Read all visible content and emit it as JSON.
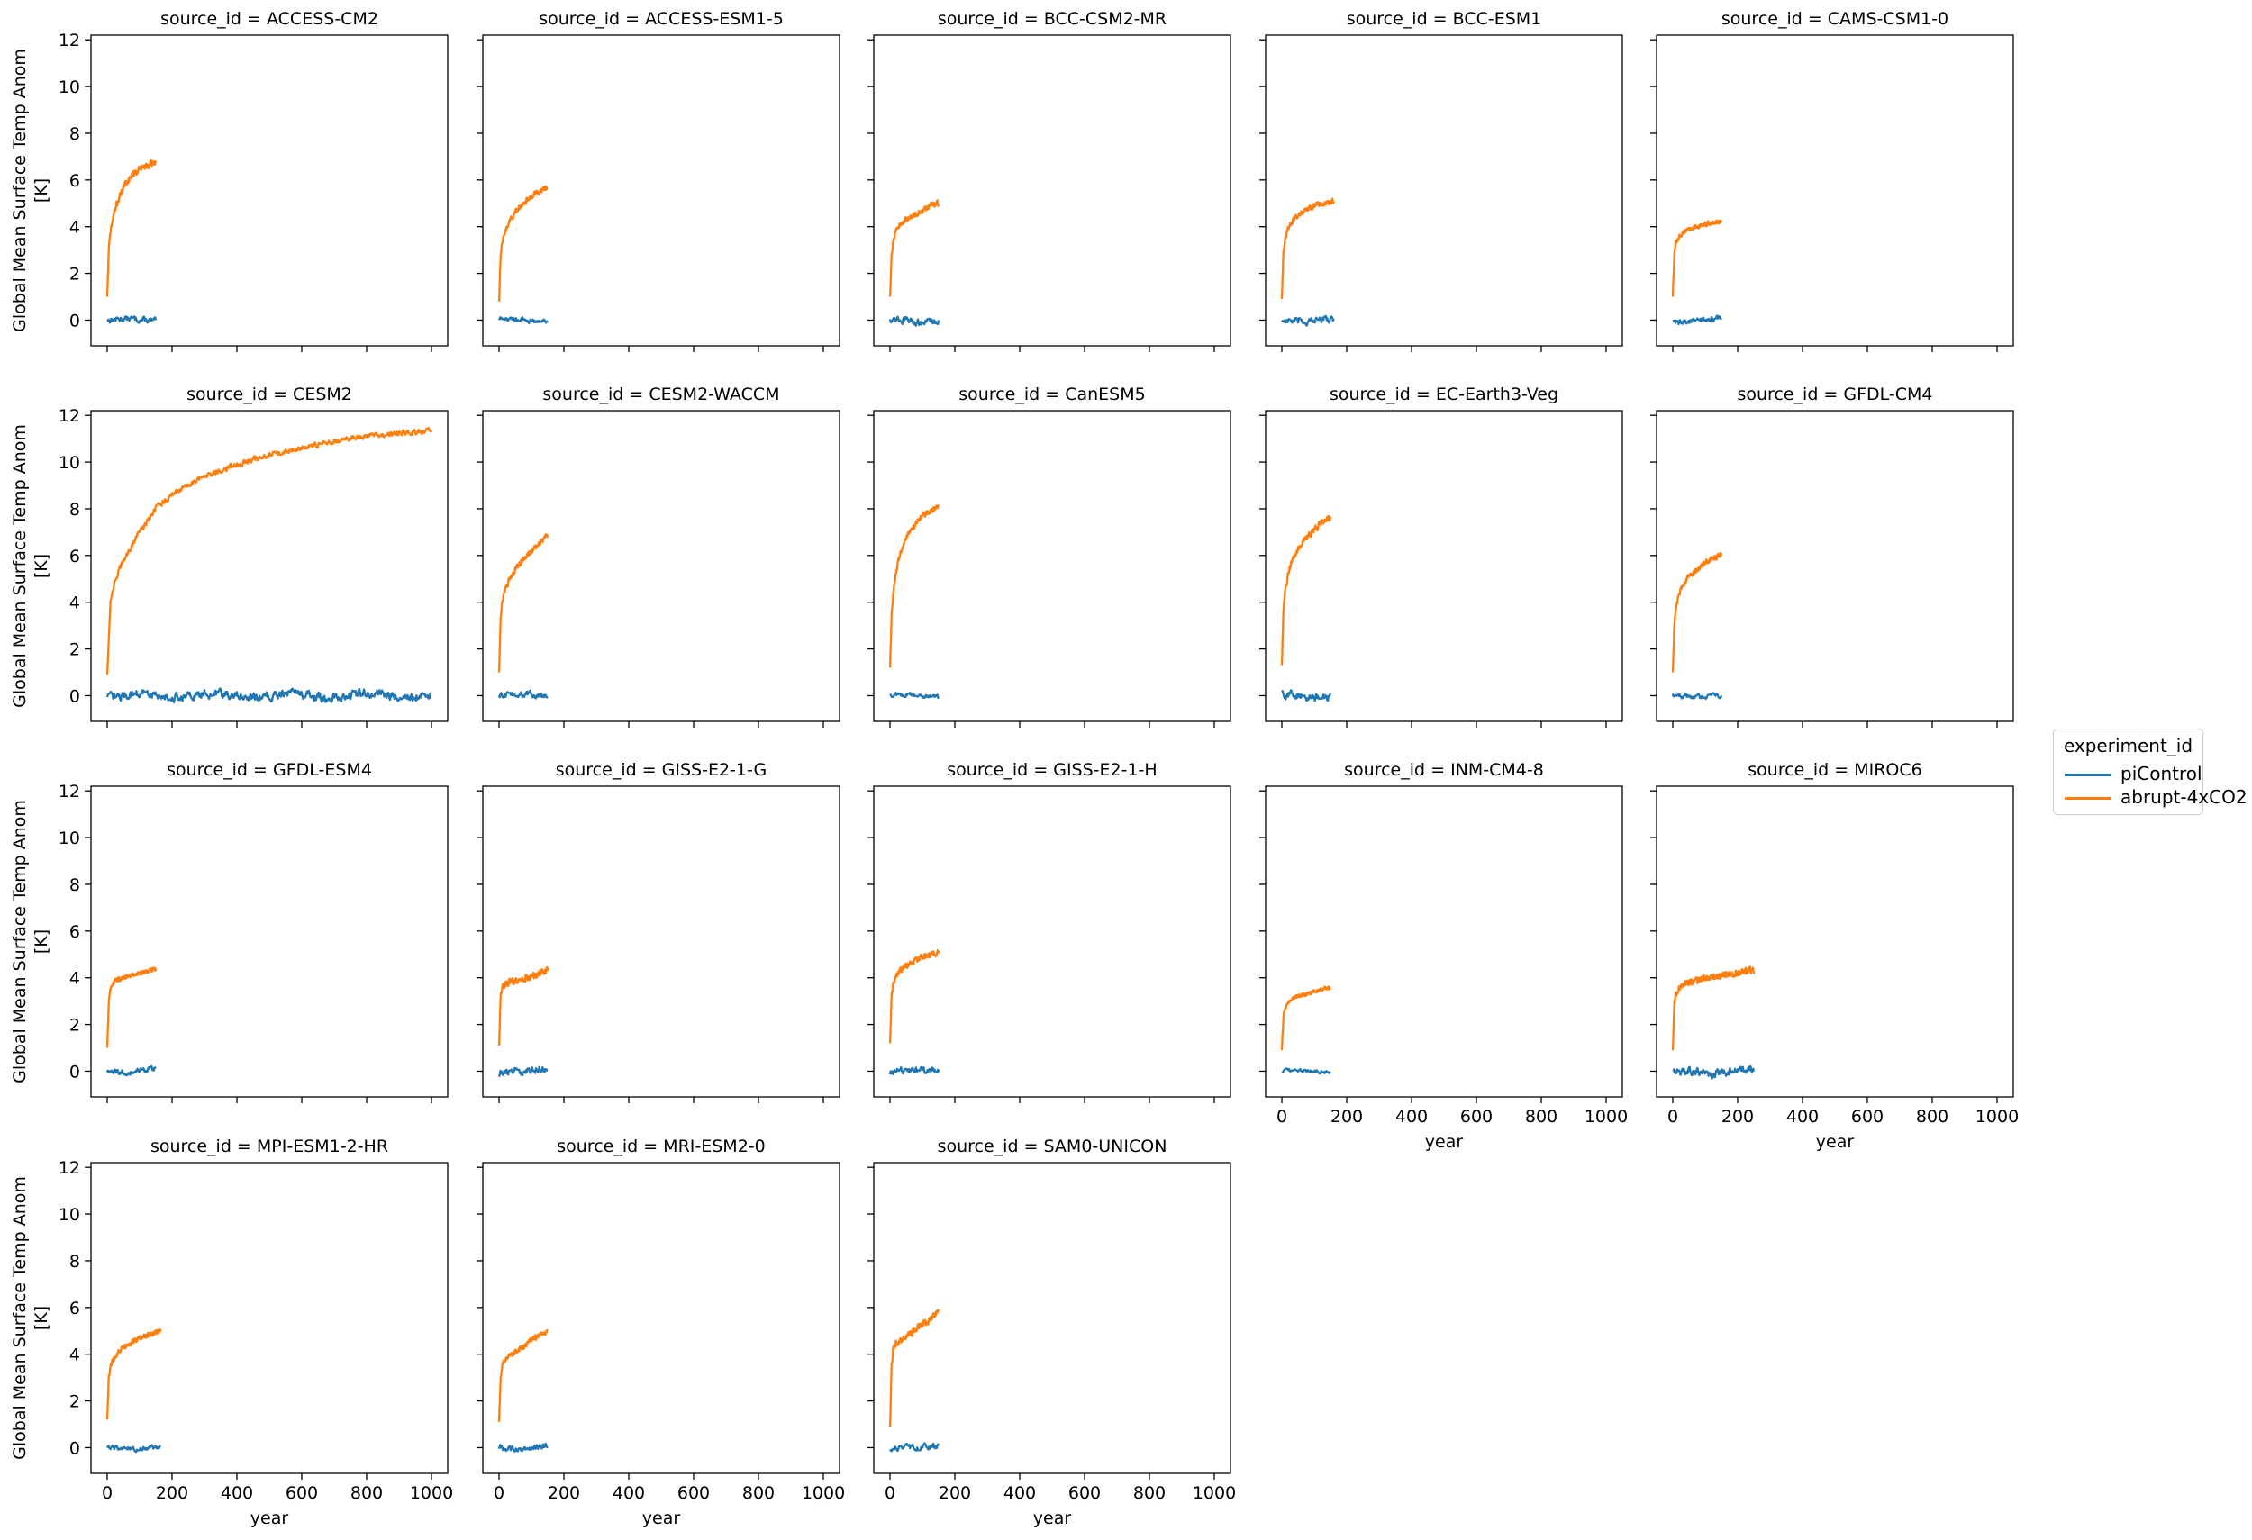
{
  "chart_data": {
    "type": "line",
    "xlabel": "year",
    "ylabel": "Global Mean Surface Temp Anom\n[K]",
    "xlim": [
      -50,
      1050
    ],
    "ylim": [
      -1.1,
      12.2
    ],
    "x_ticks": [
      0,
      200,
      400,
      600,
      800,
      1000
    ],
    "y_ticks": [
      0,
      2,
      4,
      6,
      8,
      10,
      12
    ],
    "grid": false,
    "legend": {
      "title": "experiment_id",
      "placement": "right",
      "entries": [
        {
          "name": "piControl",
          "color": "#1f77b4"
        },
        {
          "name": "abrupt-4xCO2",
          "color": "#ff7f0e"
        }
      ]
    },
    "colors": {
      "piControl": "#1f77b4",
      "abrupt-4xCO2": "#ff7f0e"
    },
    "panels": [
      {
        "title": "source_id = ACCESS-CM2",
        "pi_years": 150,
        "pi_amp": 0.1,
        "abrupt": {
          "x": [
            0,
            5,
            10,
            20,
            30,
            50,
            75,
            100,
            125,
            150
          ],
          "y": [
            1.0,
            3.0,
            3.8,
            4.5,
            5.0,
            5.7,
            6.2,
            6.5,
            6.6,
            6.8
          ],
          "noise": 0.12
        }
      },
      {
        "title": "source_id = ACCESS-ESM1-5",
        "pi_years": 150,
        "pi_amp": 0.08,
        "abrupt": {
          "x": [
            0,
            5,
            10,
            20,
            30,
            50,
            75,
            100,
            125,
            150
          ],
          "y": [
            0.8,
            2.8,
            3.4,
            3.9,
            4.2,
            4.6,
            5.0,
            5.3,
            5.5,
            5.7
          ],
          "noise": 0.1
        }
      },
      {
        "title": "source_id = BCC-CSM2-MR",
        "pi_years": 150,
        "pi_amp": 0.12,
        "abrupt": {
          "x": [
            0,
            5,
            10,
            20,
            30,
            50,
            75,
            100,
            125,
            150
          ],
          "y": [
            1.0,
            2.8,
            3.4,
            3.9,
            4.1,
            4.3,
            4.5,
            4.7,
            4.9,
            5.0
          ],
          "noise": 0.1
        }
      },
      {
        "title": "source_id = BCC-ESM1",
        "pi_years": 160,
        "pi_amp": 0.12,
        "abrupt": {
          "x": [
            0,
            5,
            10,
            20,
            30,
            50,
            75,
            100,
            130,
            160
          ],
          "y": [
            0.9,
            2.9,
            3.5,
            4.0,
            4.2,
            4.5,
            4.7,
            4.9,
            5.0,
            5.1
          ],
          "noise": 0.1
        }
      },
      {
        "title": "source_id = CAMS-CSM1-0",
        "pi_years": 150,
        "pi_amp": 0.1,
        "abrupt": {
          "x": [
            0,
            5,
            10,
            20,
            30,
            50,
            75,
            100,
            125,
            150
          ],
          "y": [
            1.0,
            2.9,
            3.3,
            3.6,
            3.7,
            3.9,
            4.0,
            4.1,
            4.15,
            4.2
          ],
          "noise": 0.09
        }
      },
      {
        "title": "source_id = CESM2",
        "pi_years": 1000,
        "pi_amp": 0.15,
        "abrupt": {
          "x": [
            0,
            10,
            25,
            50,
            100,
            150,
            200,
            300,
            400,
            500,
            600,
            700,
            800,
            900,
            1000
          ],
          "y": [
            0.9,
            4.0,
            5.0,
            5.8,
            7.0,
            8.0,
            8.6,
            9.4,
            9.9,
            10.3,
            10.6,
            10.9,
            11.1,
            11.25,
            11.35
          ],
          "noise": 0.1
        }
      },
      {
        "title": "source_id = CESM2-WACCM",
        "pi_years": 150,
        "pi_amp": 0.1,
        "abrupt": {
          "x": [
            0,
            5,
            10,
            20,
            30,
            50,
            75,
            100,
            125,
            150
          ],
          "y": [
            1.0,
            3.3,
            4.0,
            4.6,
            4.9,
            5.4,
            5.8,
            6.2,
            6.5,
            6.9
          ],
          "noise": 0.1
        }
      },
      {
        "title": "source_id = CanESM5",
        "pi_years": 150,
        "pi_amp": 0.08,
        "abrupt": {
          "x": [
            0,
            5,
            10,
            20,
            30,
            50,
            75,
            100,
            125,
            150
          ],
          "y": [
            1.2,
            3.5,
            4.4,
            5.4,
            6.0,
            6.8,
            7.3,
            7.7,
            7.9,
            8.1
          ],
          "noise": 0.1
        }
      },
      {
        "title": "source_id = EC-Earth3-Veg",
        "pi_years": 150,
        "pi_amp": 0.15,
        "abrupt": {
          "x": [
            0,
            5,
            10,
            20,
            30,
            50,
            75,
            100,
            125,
            150
          ],
          "y": [
            1.3,
            3.6,
            4.4,
            5.2,
            5.7,
            6.3,
            6.8,
            7.1,
            7.4,
            7.6
          ],
          "noise": 0.12
        }
      },
      {
        "title": "source_id = GFDL-CM4",
        "pi_years": 150,
        "pi_amp": 0.08,
        "abrupt": {
          "x": [
            0,
            5,
            10,
            20,
            30,
            50,
            75,
            100,
            125,
            150
          ],
          "y": [
            1.0,
            3.0,
            3.8,
            4.4,
            4.7,
            5.1,
            5.4,
            5.7,
            5.9,
            6.0
          ],
          "noise": 0.1
        }
      },
      {
        "title": "source_id = GFDL-ESM4",
        "pi_years": 150,
        "pi_amp": 0.1,
        "abrupt": {
          "x": [
            0,
            5,
            10,
            20,
            30,
            50,
            75,
            100,
            125,
            150
          ],
          "y": [
            1.0,
            3.0,
            3.5,
            3.8,
            3.9,
            4.0,
            4.1,
            4.2,
            4.3,
            4.35
          ],
          "noise": 0.08
        }
      },
      {
        "title": "source_id = GISS-E2-1-G",
        "pi_years": 150,
        "pi_amp": 0.15,
        "abrupt": {
          "x": [
            0,
            5,
            10,
            20,
            30,
            50,
            75,
            100,
            125,
            150
          ],
          "y": [
            1.1,
            3.2,
            3.6,
            3.7,
            3.8,
            3.85,
            3.95,
            4.05,
            4.2,
            4.35
          ],
          "noise": 0.12
        }
      },
      {
        "title": "source_id = GISS-E2-1-H",
        "pi_years": 150,
        "pi_amp": 0.12,
        "abrupt": {
          "x": [
            0,
            5,
            10,
            20,
            30,
            50,
            75,
            100,
            125,
            150
          ],
          "y": [
            1.2,
            3.2,
            3.7,
            4.1,
            4.3,
            4.5,
            4.7,
            4.9,
            5.0,
            5.1
          ],
          "noise": 0.1
        }
      },
      {
        "title": "source_id = INM-CM4-8",
        "pi_years": 150,
        "pi_amp": 0.06,
        "abrupt": {
          "x": [
            0,
            5,
            10,
            20,
            30,
            50,
            75,
            100,
            125,
            150
          ],
          "y": [
            0.9,
            2.3,
            2.7,
            3.0,
            3.1,
            3.2,
            3.3,
            3.4,
            3.5,
            3.6
          ],
          "noise": 0.07
        }
      },
      {
        "title": "source_id = MIROC6",
        "pi_years": 250,
        "pi_amp": 0.15,
        "abrupt": {
          "x": [
            0,
            5,
            10,
            20,
            30,
            50,
            100,
            150,
            200,
            250
          ],
          "y": [
            0.9,
            2.9,
            3.3,
            3.6,
            3.7,
            3.8,
            4.0,
            4.1,
            4.2,
            4.3
          ],
          "noise": 0.13
        }
      },
      {
        "title": "source_id = MPI-ESM1-2-HR",
        "pi_years": 165,
        "pi_amp": 0.08,
        "abrupt": {
          "x": [
            0,
            5,
            10,
            20,
            30,
            50,
            75,
            100,
            130,
            165
          ],
          "y": [
            1.2,
            3.0,
            3.5,
            3.8,
            4.0,
            4.3,
            4.5,
            4.7,
            4.85,
            5.0
          ],
          "noise": 0.09
        }
      },
      {
        "title": "source_id = MRI-ESM2-0",
        "pi_years": 150,
        "pi_amp": 0.1,
        "abrupt": {
          "x": [
            0,
            5,
            10,
            20,
            30,
            50,
            75,
            100,
            125,
            150
          ],
          "y": [
            1.1,
            3.0,
            3.6,
            3.8,
            3.9,
            4.1,
            4.3,
            4.6,
            4.8,
            5.0
          ],
          "noise": 0.1
        }
      },
      {
        "title": "source_id = SAM0-UNICON",
        "pi_years": 150,
        "pi_amp": 0.1,
        "abrupt": {
          "x": [
            0,
            5,
            10,
            20,
            30,
            50,
            75,
            100,
            125,
            150
          ],
          "y": [
            0.9,
            3.5,
            4.2,
            4.5,
            4.6,
            4.8,
            5.0,
            5.3,
            5.5,
            5.9
          ],
          "noise": 0.12
        }
      }
    ]
  }
}
